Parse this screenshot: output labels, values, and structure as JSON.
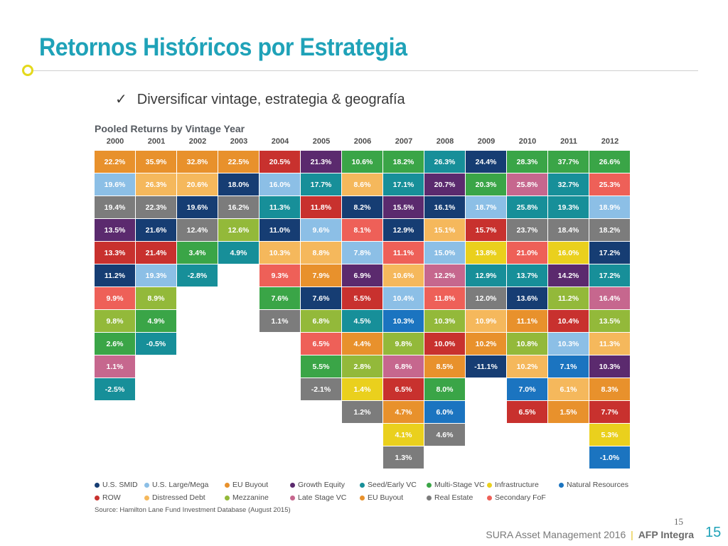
{
  "header": {
    "title": "Retornos Históricos por Estrategia"
  },
  "bullet": {
    "check": "✓",
    "text": "Diversificar vintage, estrategia & geografía"
  },
  "chart_data": {
    "type": "table",
    "title": "Pooled Returns by Vintage Year",
    "years": [
      "2000",
      "2001",
      "2002",
      "2003",
      "2004",
      "2005",
      "2006",
      "2007",
      "2008",
      "2009",
      "2010",
      "2011",
      "2012"
    ],
    "strategies": {
      "U.S. SMID": "#163d73",
      "U.S. Large/Mega": "#8cbfe6",
      "EU Buyout": "#e8912c",
      "Growth Equity": "#5b2a6e",
      "Seed/Early VC": "#178f99",
      "Multi-Stage VC": "#3aa547",
      "Infrastructure": "#ead01d",
      "Natural Resources": "#1b74c0",
      "ROW": "#c8312e",
      "Distressed Debt": "#f5b85c",
      "Mezzanine": "#93b93a",
      "Late Stage VC": "#c6678e",
      "EU Buyout (2)": "#e8912c",
      "Real Estate": "#7c7c7c",
      "Secondary FoF": "#ee6058"
    },
    "columns": [
      [
        [
          "22.2%",
          "EU Buyout"
        ],
        [
          "19.6%",
          "U.S. Large/Mega"
        ],
        [
          "19.4%",
          "Real Estate"
        ],
        [
          "13.5%",
          "Growth Equity"
        ],
        [
          "13.3%",
          "ROW"
        ],
        [
          "11.2%",
          "U.S. SMID"
        ],
        [
          "9.9%",
          "Secondary FoF"
        ],
        [
          "9.8%",
          "Mezzanine"
        ],
        [
          "2.6%",
          "Multi-Stage VC"
        ],
        [
          "1.1%",
          "Late Stage VC"
        ],
        [
          "-2.5%",
          "Seed/Early VC"
        ]
      ],
      [
        [
          "35.9%",
          "EU Buyout"
        ],
        [
          "26.3%",
          "Distressed Debt"
        ],
        [
          "22.3%",
          "Real Estate"
        ],
        [
          "21.6%",
          "U.S. SMID"
        ],
        [
          "21.4%",
          "ROW"
        ],
        [
          "19.3%",
          "U.S. Large/Mega"
        ],
        [
          "8.9%",
          "Mezzanine"
        ],
        [
          "4.9%",
          "Multi-Stage VC"
        ],
        [
          "-0.5%",
          "Seed/Early VC"
        ]
      ],
      [
        [
          "32.8%",
          "EU Buyout"
        ],
        [
          "20.6%",
          "Distressed Debt"
        ],
        [
          "19.6%",
          "U.S. SMID"
        ],
        [
          "12.4%",
          "Real Estate"
        ],
        [
          "3.4%",
          "Multi-Stage VC"
        ],
        [
          "-2.8%",
          "Seed/Early VC"
        ]
      ],
      [
        [
          "22.5%",
          "EU Buyout"
        ],
        [
          "18.0%",
          "U.S. SMID"
        ],
        [
          "16.2%",
          "Real Estate"
        ],
        [
          "12.6%",
          "Mezzanine"
        ],
        [
          "4.9%",
          "Seed/Early VC"
        ]
      ],
      [
        [
          "20.5%",
          "ROW"
        ],
        [
          "16.0%",
          "U.S. Large/Mega"
        ],
        [
          "11.3%",
          "Seed/Early VC"
        ],
        [
          "11.0%",
          "U.S. SMID"
        ],
        [
          "10.3%",
          "Distressed Debt"
        ],
        [
          "9.3%",
          "Secondary FoF"
        ],
        [
          "7.6%",
          "Multi-Stage VC"
        ],
        [
          "1.1%",
          "Real Estate"
        ]
      ],
      [
        [
          "21.3%",
          "Growth Equity"
        ],
        [
          "17.7%",
          "Seed/Early VC"
        ],
        [
          "11.8%",
          "ROW"
        ],
        [
          "9.6%",
          "U.S. Large/Mega"
        ],
        [
          "8.8%",
          "Distressed Debt"
        ],
        [
          "7.9%",
          "EU Buyout"
        ],
        [
          "7.6%",
          "U.S. SMID"
        ],
        [
          "6.8%",
          "Mezzanine"
        ],
        [
          "6.5%",
          "Secondary FoF"
        ],
        [
          "5.5%",
          "Multi-Stage VC"
        ],
        [
          "-2.1%",
          "Real Estate"
        ]
      ],
      [
        [
          "10.6%",
          "Multi-Stage VC"
        ],
        [
          "8.6%",
          "Distressed Debt"
        ],
        [
          "8.2%",
          "U.S. SMID"
        ],
        [
          "8.1%",
          "Secondary FoF"
        ],
        [
          "7.8%",
          "U.S. Large/Mega"
        ],
        [
          "6.9%",
          "Growth Equity"
        ],
        [
          "5.5%",
          "ROW"
        ],
        [
          "4.5%",
          "Seed/Early VC"
        ],
        [
          "4.4%",
          "EU Buyout"
        ],
        [
          "2.8%",
          "Mezzanine"
        ],
        [
          "1.4%",
          "Infrastructure"
        ],
        [
          "1.2%",
          "Real Estate"
        ]
      ],
      [
        [
          "18.2%",
          "Multi-Stage VC"
        ],
        [
          "17.1%",
          "Seed/Early VC"
        ],
        [
          "15.5%",
          "Growth Equity"
        ],
        [
          "12.9%",
          "U.S. SMID"
        ],
        [
          "11.1%",
          "Secondary FoF"
        ],
        [
          "10.6%",
          "Distressed Debt"
        ],
        [
          "10.4%",
          "U.S. Large/Mega"
        ],
        [
          "10.3%",
          "Natural Resources"
        ],
        [
          "9.8%",
          "Mezzanine"
        ],
        [
          "6.8%",
          "Late Stage VC"
        ],
        [
          "6.5%",
          "ROW"
        ],
        [
          "4.7%",
          "EU Buyout"
        ],
        [
          "4.1%",
          "Infrastructure"
        ],
        [
          "1.3%",
          "Real Estate"
        ]
      ],
      [
        [
          "26.3%",
          "Seed/Early VC"
        ],
        [
          "20.7%",
          "Growth Equity"
        ],
        [
          "16.1%",
          "U.S. SMID"
        ],
        [
          "15.1%",
          "Distressed Debt"
        ],
        [
          "15.0%",
          "U.S. Large/Mega"
        ],
        [
          "12.2%",
          "Late Stage VC"
        ],
        [
          "11.8%",
          "Secondary FoF"
        ],
        [
          "10.3%",
          "Mezzanine"
        ],
        [
          "10.0%",
          "ROW"
        ],
        [
          "8.5%",
          "EU Buyout"
        ],
        [
          "8.0%",
          "Multi-Stage VC"
        ],
        [
          "6.0%",
          "Natural Resources"
        ],
        [
          "4.6%",
          "Real Estate"
        ]
      ],
      [
        [
          "24.4%",
          "U.S. SMID"
        ],
        [
          "20.3%",
          "Multi-Stage VC"
        ],
        [
          "18.7%",
          "U.S. Large/Mega"
        ],
        [
          "15.7%",
          "ROW"
        ],
        [
          "13.8%",
          "Infrastructure"
        ],
        [
          "12.9%",
          "Seed/Early VC"
        ],
        [
          "12.0%",
          "Real Estate"
        ],
        [
          "10.9%",
          "Distressed Debt"
        ],
        [
          "10.2%",
          "EU Buyout"
        ],
        [
          "-11.1%",
          "U.S. SMID"
        ]
      ],
      [
        [
          "28.3%",
          "Multi-Stage VC"
        ],
        [
          "25.8%",
          "Late Stage VC"
        ],
        [
          "25.8%",
          "Seed/Early VC"
        ],
        [
          "23.7%",
          "Real Estate"
        ],
        [
          "21.0%",
          "Secondary FoF"
        ],
        [
          "13.7%",
          "Seed/Early VC"
        ],
        [
          "13.6%",
          "U.S. SMID"
        ],
        [
          "11.1%",
          "EU Buyout"
        ],
        [
          "10.8%",
          "Mezzanine"
        ],
        [
          "10.2%",
          "Distressed Debt"
        ],
        [
          "7.0%",
          "Natural Resources"
        ],
        [
          "6.5%",
          "ROW"
        ]
      ],
      [
        [
          "37.7%",
          "Multi-Stage VC"
        ],
        [
          "32.7%",
          "Seed/Early VC"
        ],
        [
          "19.3%",
          "Seed/Early VC"
        ],
        [
          "18.4%",
          "Real Estate"
        ],
        [
          "16.0%",
          "Infrastructure"
        ],
        [
          "14.2%",
          "Growth Equity"
        ],
        [
          "11.2%",
          "Mezzanine"
        ],
        [
          "10.4%",
          "ROW"
        ],
        [
          "10.3%",
          "U.S. Large/Mega"
        ],
        [
          "7.1%",
          "Natural Resources"
        ],
        [
          "6.1%",
          "Distressed Debt"
        ],
        [
          "1.5%",
          "EU Buyout"
        ]
      ],
      [
        [
          "26.6%",
          "Multi-Stage VC"
        ],
        [
          "25.3%",
          "Secondary FoF"
        ],
        [
          "18.9%",
          "U.S. Large/Mega"
        ],
        [
          "18.2%",
          "Real Estate"
        ],
        [
          "17.2%",
          "U.S. SMID"
        ],
        [
          "17.2%",
          "Seed/Early VC"
        ],
        [
          "16.4%",
          "Late Stage VC"
        ],
        [
          "13.5%",
          "Mezzanine"
        ],
        [
          "11.3%",
          "Distressed Debt"
        ],
        [
          "10.3%",
          "Growth Equity"
        ],
        [
          "8.3%",
          "EU Buyout"
        ],
        [
          "7.7%",
          "ROW"
        ],
        [
          "5.3%",
          "Infrastructure"
        ],
        [
          "-1.0%",
          "Natural Resources"
        ]
      ]
    ],
    "legend": [
      [
        {
          "label": "U.S. SMID",
          "color": "#163d73"
        },
        {
          "label": "U.S. Large/Mega",
          "color": "#8cbfe6"
        },
        {
          "label": "EU Buyout",
          "color": "#e8912c"
        },
        {
          "label": "Growth Equity",
          "color": "#5b2a6e"
        },
        {
          "label": "Seed/Early VC",
          "color": "#178f99"
        },
        {
          "label": "Multi-Stage VC",
          "color": "#3aa547"
        },
        {
          "label": "Infrastructure",
          "color": "#ead01d"
        },
        {
          "label": "Natural Resources",
          "color": "#1b74c0"
        }
      ],
      [
        {
          "label": "ROW",
          "color": "#c8312e"
        },
        {
          "label": "Distressed Debt",
          "color": "#f5b85c"
        },
        {
          "label": "Mezzanine",
          "color": "#93b93a"
        },
        {
          "label": "Late Stage VC",
          "color": "#c6678e"
        },
        {
          "label": "EU Buyout",
          "color": "#e8912c"
        },
        {
          "label": "Real Estate",
          "color": "#7c7c7c"
        },
        {
          "label": "Secondary FoF",
          "color": "#ee6058"
        }
      ]
    ],
    "source": "Source: Hamilton Lane Fund Investment Database (August 2015)"
  },
  "footer": {
    "page_small": "15",
    "company": "SURA Asset Management 2016",
    "separator": "|",
    "brand": "AFP Integra",
    "page": "15"
  }
}
